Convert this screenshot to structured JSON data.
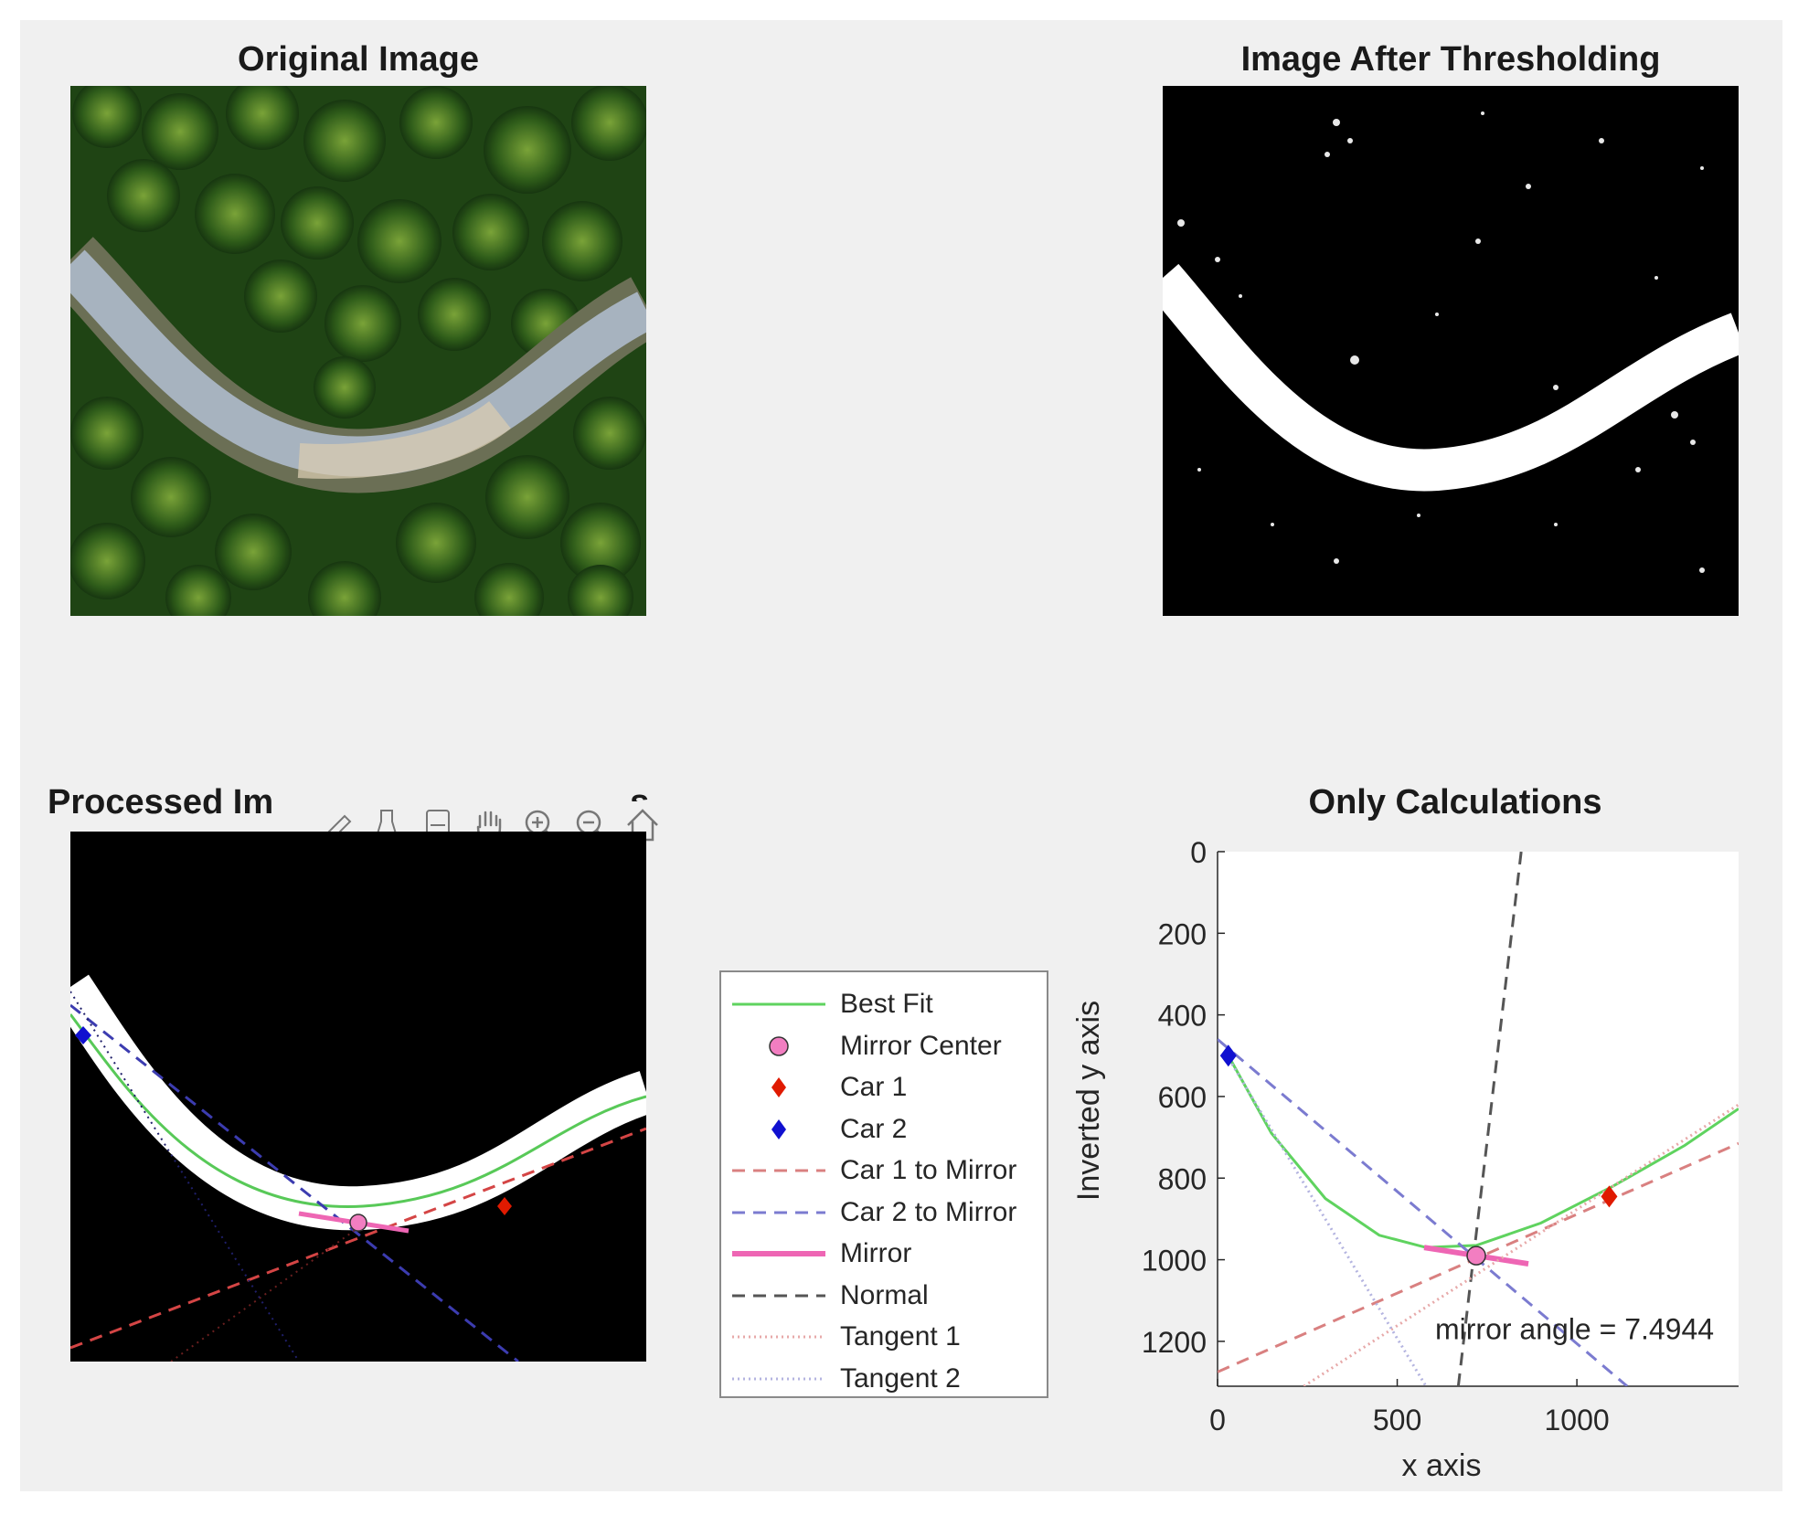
{
  "panels": {
    "original": {
      "title": "Original Image"
    },
    "threshold": {
      "title": "Image After Thresholding"
    },
    "processed": {
      "title_left": "Processed Im",
      "title_right": "s"
    },
    "calc": {
      "title": "Only Calculations"
    }
  },
  "toolbar": {
    "buttons": [
      "brush-icon",
      "data-tips-icon",
      "link-axes-icon",
      "pan-hand-icon",
      "zoom-in-icon",
      "zoom-out-icon",
      "home-restore-icon"
    ]
  },
  "legend": {
    "items": [
      {
        "label": "Best Fit",
        "style": "solid",
        "color": "#5fd35f"
      },
      {
        "label": "Mirror Center",
        "style": "circle",
        "color": "#f27ec1"
      },
      {
        "label": "Car 1",
        "style": "diamond",
        "color": "#e01a00"
      },
      {
        "label": "Car 2",
        "style": "diamond",
        "color": "#1010d0"
      },
      {
        "label": "Car 1 to Mirror",
        "style": "dashed",
        "color": "#d98080"
      },
      {
        "label": "Car 2 to Mirror",
        "style": "dashed",
        "color": "#7b7bd0"
      },
      {
        "label": "Mirror",
        "style": "thick",
        "color": "#ee66b4"
      },
      {
        "label": "Normal",
        "style": "dashed",
        "color": "#555555"
      },
      {
        "label": "Tangent 1",
        "style": "dotted",
        "color": "#e7a9a9"
      },
      {
        "label": "Tangent 2",
        "style": "dotted",
        "color": "#b4b4e0"
      }
    ]
  },
  "chart_data": {
    "type": "scatter",
    "title": "Only Calculations",
    "xlabel": "x axis",
    "ylabel": "Inverted y axis",
    "xlim": [
      0,
      1450
    ],
    "ylim": [
      0,
      1310
    ],
    "y_reversed": true,
    "xticks": [
      "0",
      "500",
      "1000"
    ],
    "yticks": [
      "0",
      "200",
      "400",
      "600",
      "800",
      "1000",
      "1200"
    ],
    "annotation": "mirror angle = 7.4944",
    "series": [
      {
        "name": "Best Fit",
        "type": "line",
        "color": "#5fd35f",
        "points": [
          [
            30,
            500
          ],
          [
            150,
            690
          ],
          [
            300,
            850
          ],
          [
            450,
            940
          ],
          [
            580,
            970
          ],
          [
            720,
            965
          ],
          [
            900,
            910
          ],
          [
            1100,
            820
          ],
          [
            1300,
            720
          ],
          [
            1450,
            630
          ]
        ]
      },
      {
        "name": "Mirror Center",
        "type": "point",
        "color": "#f27ec1",
        "points": [
          [
            720,
            990
          ]
        ]
      },
      {
        "name": "Car 1",
        "type": "point",
        "color": "#e01a00",
        "points": [
          [
            1090,
            845
          ]
        ]
      },
      {
        "name": "Car 2",
        "type": "point",
        "color": "#1010d0",
        "points": [
          [
            30,
            500
          ]
        ]
      },
      {
        "name": "Car 1 to Mirror",
        "type": "line",
        "color": "#d98080",
        "points": [
          [
            0,
            1275
          ],
          [
            1450,
            715
          ]
        ]
      },
      {
        "name": "Car 2 to Mirror",
        "type": "line",
        "color": "#7b7bd0",
        "points": [
          [
            0,
            460
          ],
          [
            1140,
            1310
          ]
        ]
      },
      {
        "name": "Mirror",
        "type": "line",
        "color": "#ee66b4",
        "points": [
          [
            575,
            970
          ],
          [
            865,
            1010
          ]
        ]
      },
      {
        "name": "Normal",
        "type": "line",
        "color": "#555555",
        "points": [
          [
            670,
            1310
          ],
          [
            845,
            0
          ]
        ]
      },
      {
        "name": "Tangent 1",
        "type": "line",
        "color": "#e7a9a9",
        "points": [
          [
            240,
            1310
          ],
          [
            1450,
            620
          ]
        ]
      },
      {
        "name": "Tangent 2",
        "type": "line",
        "color": "#b4b4e0",
        "points": [
          [
            40,
            520
          ],
          [
            580,
            1310
          ]
        ]
      }
    ]
  }
}
